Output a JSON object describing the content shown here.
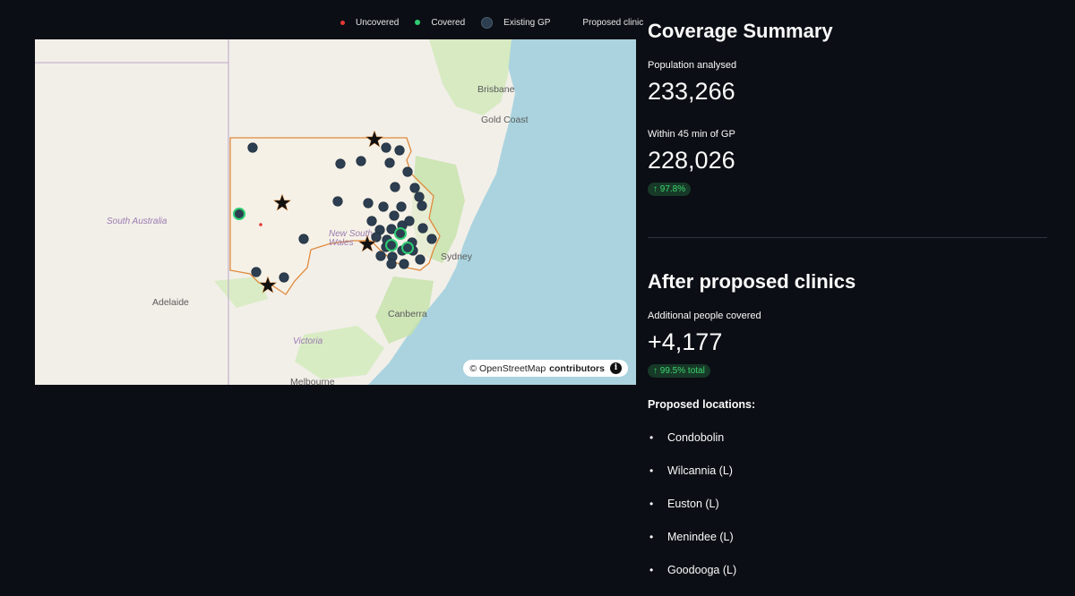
{
  "legend": {
    "uncovered": "Uncovered",
    "covered": "Covered",
    "existing_gp": "Existing GP",
    "proposed_clinic": "Proposed clinic"
  },
  "map": {
    "labels": {
      "brisbane": "Brisbane",
      "gold_coast": "Gold Coast",
      "south_australia": "South Australia",
      "new_south_wales": "New South Wales",
      "sydney": "Sydney",
      "adelaide": "Adelaide",
      "canberra": "Canberra",
      "victoria": "Victoria",
      "melbourne": "Melbourne"
    },
    "attribution_prefix": "© OpenStreetMap",
    "attribution_suffix": "contributors",
    "info_icon": "i",
    "colors": {
      "water": "#aad3df",
      "land": "#f2efe9",
      "forest": "#c8e6b0",
      "boundary": "#e08a3c",
      "gp": "#2c3e50",
      "covered": "#2ecc71",
      "uncovered": "#e53935"
    }
  },
  "summary": {
    "title": "Coverage Summary",
    "population_label": "Population analysed",
    "population_value": "233,266",
    "within_label": "Within 45 min of GP",
    "within_value": "228,026",
    "within_delta": "↑ 97.8%"
  },
  "after": {
    "title": "After proposed clinics",
    "additional_label": "Additional people covered",
    "additional_value": "+4,177",
    "additional_delta": "↑ 99.5% total",
    "locations_heading": "Proposed locations:",
    "locations": [
      "Condobolin",
      "Wilcannia (L)",
      "Euston (L)",
      "Menindee (L)",
      "Goodooga (L)"
    ]
  }
}
